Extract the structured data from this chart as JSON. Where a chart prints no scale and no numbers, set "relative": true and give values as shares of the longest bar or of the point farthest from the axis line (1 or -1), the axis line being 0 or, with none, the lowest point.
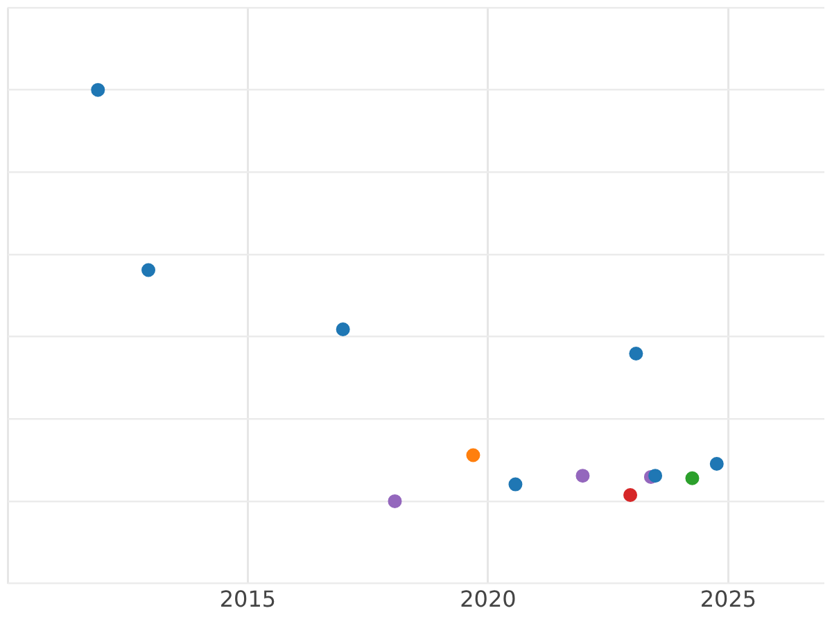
{
  "chart_data": {
    "type": "scatter",
    "relative": true,
    "xlim": [
      2010,
      2027
    ],
    "xticks": [
      {
        "value": 2010,
        "label": null
      },
      2015,
      2020,
      2025
    ],
    "grid": true,
    "marker": "circle",
    "series": [
      {
        "color": "#1f77b4",
        "x": [
          2011.88,
          2012.93,
          2016.98,
          2023.08,
          2020.57,
          2023.48,
          2024.76
        ],
        "values": [
          1.0,
          0.562,
          0.418,
          0.359,
          0.041,
          0.062,
          0.091
        ]
      },
      {
        "color": "#ff7f0e",
        "x": [
          2019.69
        ],
        "values": [
          0.112
        ]
      },
      {
        "color": "#9467bd",
        "x": [
          2018.06,
          2021.97,
          2023.39
        ],
        "values": [
          0,
          0.062,
          0.059
        ]
      },
      {
        "color": "#d62728",
        "x": [
          2022.96
        ],
        "values": [
          0.015
        ]
      },
      {
        "color": "#2ca02c",
        "x": [
          2024.25
        ],
        "values": [
          0.056
        ]
      }
    ]
  }
}
